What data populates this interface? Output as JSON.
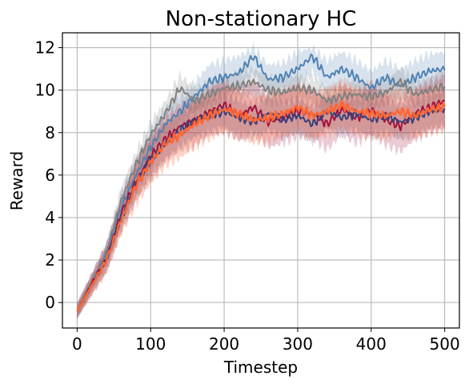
{
  "chart_data": {
    "type": "line",
    "title": "Non-stationary HC",
    "xlabel": "Timestep",
    "ylabel": "Reward",
    "xlim": [
      -20,
      520
    ],
    "ylim": [
      -1.2,
      12.7
    ],
    "xticks": [
      0,
      100,
      200,
      300,
      400,
      500
    ],
    "yticks": [
      0,
      2,
      4,
      6,
      8,
      10,
      12
    ],
    "x_tick_labels": [
      "0",
      "100",
      "200",
      "300",
      "400",
      "500"
    ],
    "y_tick_labels": [
      "0",
      "2",
      "4",
      "6",
      "8",
      "10",
      "12"
    ],
    "grid": true,
    "legend": "none",
    "x": [
      0,
      20,
      40,
      60,
      80,
      100,
      120,
      140,
      160,
      180,
      200,
      220,
      240,
      260,
      280,
      300,
      320,
      340,
      360,
      380,
      400,
      420,
      440,
      460,
      480,
      500
    ],
    "series": [
      {
        "color": "#4f81b3",
        "values": [
          -0.4,
          1.0,
          2.3,
          4.5,
          6.0,
          7.3,
          8.4,
          9.0,
          9.7,
          10.4,
          10.6,
          10.8,
          11.6,
          10.5,
          10.6,
          11.0,
          11.6,
          10.6,
          11.0,
          10.6,
          10.1,
          10.6,
          10.2,
          10.6,
          10.9,
          11.0
        ],
        "lower": [
          -0.8,
          0.6,
          1.8,
          3.8,
          5.2,
          6.4,
          7.6,
          8.3,
          9.0,
          9.6,
          9.8,
          10.0,
          10.8,
          9.8,
          9.9,
          10.2,
          10.8,
          9.8,
          10.2,
          9.8,
          9.3,
          9.8,
          9.4,
          9.8,
          10.1,
          10.2
        ],
        "upper": [
          0.0,
          1.4,
          2.8,
          5.2,
          6.8,
          8.1,
          9.2,
          9.7,
          10.4,
          11.2,
          11.4,
          11.6,
          12.0,
          11.2,
          11.3,
          11.8,
          12.0,
          11.4,
          11.8,
          11.4,
          10.9,
          11.4,
          11.0,
          11.4,
          11.7,
          11.8
        ]
      },
      {
        "color": "#808080",
        "values": [
          -0.4,
          1.0,
          2.4,
          4.8,
          6.5,
          7.9,
          8.9,
          10.1,
          9.5,
          9.8,
          10.1,
          10.2,
          10.4,
          10.0,
          9.9,
          10.1,
          10.0,
          9.5,
          9.7,
          9.8,
          9.7,
          9.9,
          10.4,
          9.8,
          10.0,
          10.2
        ],
        "lower": [
          -0.7,
          0.7,
          2.0,
          4.2,
          5.9,
          7.3,
          8.3,
          9.5,
          8.9,
          9.2,
          9.5,
          9.6,
          9.8,
          9.4,
          9.3,
          9.5,
          9.4,
          8.9,
          9.1,
          9.2,
          9.1,
          9.3,
          9.8,
          9.2,
          9.4,
          9.6
        ],
        "upper": [
          -0.1,
          1.3,
          2.8,
          5.4,
          7.1,
          8.5,
          9.5,
          10.7,
          10.1,
          10.4,
          10.7,
          10.8,
          11.0,
          10.6,
          10.5,
          10.7,
          10.6,
          10.1,
          10.3,
          10.4,
          10.3,
          10.5,
          11.0,
          10.4,
          10.6,
          10.8
        ]
      },
      {
        "color": "#a0133c",
        "values": [
          -0.4,
          0.9,
          2.1,
          4.2,
          5.7,
          6.9,
          7.7,
          8.3,
          8.5,
          9.0,
          9.3,
          8.8,
          9.2,
          8.5,
          8.7,
          9.0,
          8.9,
          8.4,
          9.1,
          8.7,
          9.1,
          8.6,
          8.3,
          8.9,
          9.2,
          9.5
        ],
        "lower": [
          -0.8,
          0.4,
          1.4,
          3.4,
          4.8,
          5.9,
          6.7,
          7.2,
          7.4,
          7.9,
          8.1,
          7.6,
          8.0,
          7.3,
          7.5,
          7.8,
          7.7,
          7.2,
          7.9,
          7.5,
          7.9,
          7.4,
          7.1,
          7.7,
          8.0,
          8.2
        ],
        "upper": [
          0.0,
          1.4,
          2.8,
          5.0,
          6.6,
          7.9,
          8.7,
          9.4,
          9.6,
          10.1,
          10.5,
          10.0,
          10.4,
          9.7,
          9.9,
          10.2,
          10.1,
          9.6,
          10.3,
          9.9,
          10.3,
          9.8,
          9.5,
          10.1,
          10.4,
          10.8
        ]
      },
      {
        "color": "#3b3f78",
        "values": [
          -0.4,
          0.8,
          2.0,
          4.0,
          5.6,
          6.7,
          7.5,
          8.1,
          8.6,
          8.8,
          9.0,
          8.7,
          8.5,
          8.9,
          8.6,
          8.8,
          8.4,
          9.0,
          8.7,
          8.9,
          8.6,
          8.8,
          8.5,
          8.7,
          9.0,
          9.1
        ],
        "lower": [
          -0.7,
          0.4,
          1.5,
          3.4,
          4.9,
          5.9,
          6.7,
          7.3,
          7.8,
          8.0,
          8.2,
          7.9,
          7.7,
          8.1,
          7.8,
          8.0,
          7.6,
          8.2,
          7.9,
          8.1,
          7.8,
          8.0,
          7.7,
          7.9,
          8.2,
          8.3
        ],
        "upper": [
          -0.1,
          1.2,
          2.5,
          4.6,
          6.3,
          7.5,
          8.3,
          8.9,
          9.4,
          9.6,
          9.8,
          9.5,
          9.3,
          9.7,
          9.4,
          9.6,
          9.2,
          9.8,
          9.5,
          9.7,
          9.4,
          9.6,
          9.3,
          9.5,
          9.8,
          9.9
        ]
      },
      {
        "color": "#ff6633",
        "values": [
          -0.4,
          0.8,
          2.0,
          3.9,
          5.5,
          6.6,
          7.5,
          7.9,
          8.4,
          8.8,
          9.1,
          8.9,
          8.6,
          8.7,
          8.9,
          9.2,
          8.8,
          9.0,
          9.3,
          9.0,
          8.9,
          8.8,
          9.0,
          8.8,
          9.1,
          9.2
        ],
        "lower": [
          -0.7,
          0.3,
          1.4,
          3.2,
          4.6,
          5.6,
          6.4,
          6.8,
          7.3,
          7.7,
          8.0,
          7.8,
          7.5,
          7.6,
          7.8,
          8.1,
          7.7,
          7.9,
          8.2,
          7.9,
          7.8,
          7.7,
          7.9,
          7.7,
          8.0,
          8.1
        ],
        "upper": [
          -0.1,
          1.3,
          2.6,
          4.6,
          6.4,
          7.6,
          8.6,
          9.0,
          9.5,
          9.9,
          10.2,
          10.0,
          9.7,
          9.8,
          10.0,
          10.3,
          9.9,
          10.1,
          10.4,
          10.1,
          10.0,
          9.9,
          10.1,
          9.9,
          10.2,
          10.3
        ]
      }
    ]
  }
}
